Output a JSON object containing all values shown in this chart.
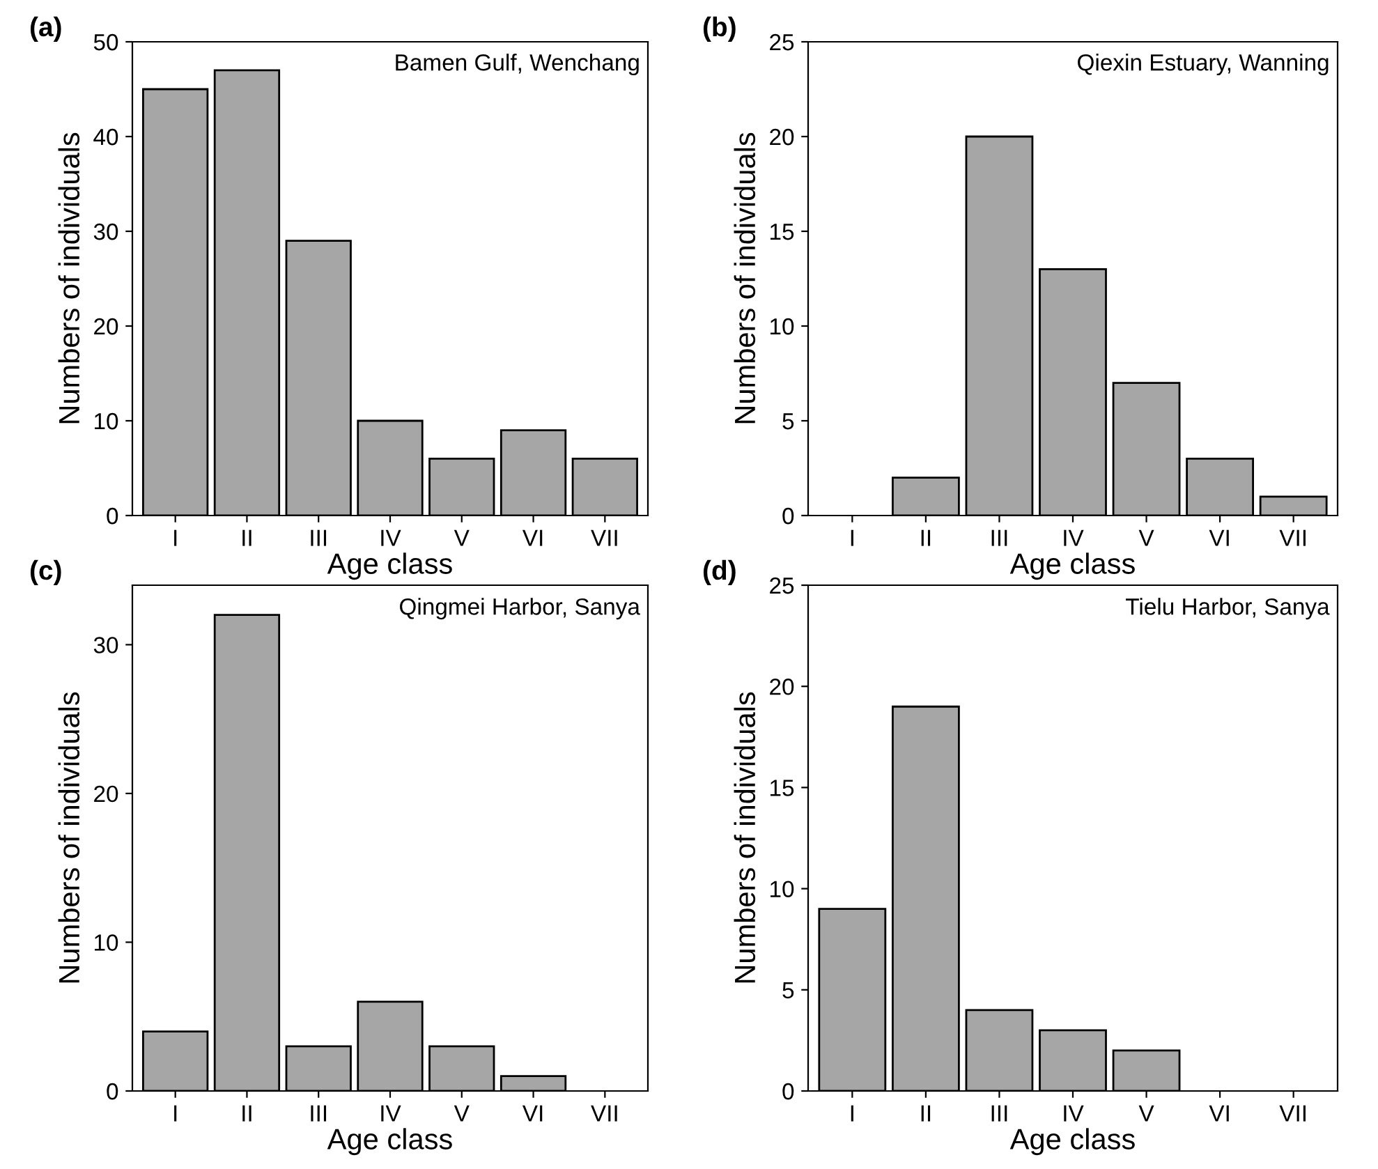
{
  "chart_data": [
    {
      "type": "bar",
      "title": "(a)",
      "annotations": [
        "Bamen Gulf, Wenchang"
      ],
      "xlabel": "Age class",
      "ylabel": "Numbers of individuals",
      "categories": [
        "I",
        "II",
        "III",
        "IV",
        "V",
        "VI",
        "VII"
      ],
      "values": [
        45,
        47,
        29,
        10,
        6,
        9,
        6
      ],
      "color": "#a6a6a6",
      "ylim": [
        0,
        50
      ],
      "yticks": [
        0,
        10,
        20,
        30,
        40,
        50
      ],
      "grid": false,
      "legend": false
    },
    {
      "type": "bar",
      "title": "(b)",
      "annotations": [
        "Qiexin Estuary, Wanning"
      ],
      "xlabel": "Age class",
      "ylabel": "Numbers of individuals",
      "categories": [
        "I",
        "II",
        "III",
        "IV",
        "V",
        "VI",
        "VII"
      ],
      "values": [
        0,
        2,
        20,
        13,
        7,
        3,
        1
      ],
      "color": "#a6a6a6",
      "ylim": [
        0,
        25
      ],
      "yticks": [
        0,
        5,
        10,
        15,
        20,
        25
      ],
      "grid": false,
      "legend": false
    },
    {
      "type": "bar",
      "title": "(c)",
      "annotations": [
        "Qingmei Harbor, Sanya"
      ],
      "xlabel": "Age class",
      "ylabel": "Numbers of individuals",
      "categories": [
        "I",
        "II",
        "III",
        "IV",
        "V",
        "VI",
        "VII"
      ],
      "values": [
        4,
        32,
        3,
        6,
        3,
        1,
        0
      ],
      "color": "#a6a6a6",
      "ylim": [
        0,
        34
      ],
      "yticks": [
        0,
        10,
        20,
        30
      ],
      "grid": false,
      "legend": false
    },
    {
      "type": "bar",
      "title": "(d)",
      "annotations": [
        "Tielu Harbor, Sanya"
      ],
      "xlabel": "Age class",
      "ylabel": "Numbers of individuals",
      "categories": [
        "I",
        "II",
        "III",
        "IV",
        "V",
        "VI",
        "VII"
      ],
      "values": [
        9,
        19,
        4,
        3,
        2,
        0,
        0
      ],
      "color": "#a6a6a6",
      "ylim": [
        0,
        25
      ],
      "yticks": [
        0,
        5,
        10,
        15,
        20,
        25
      ],
      "grid": false,
      "legend": false
    }
  ]
}
